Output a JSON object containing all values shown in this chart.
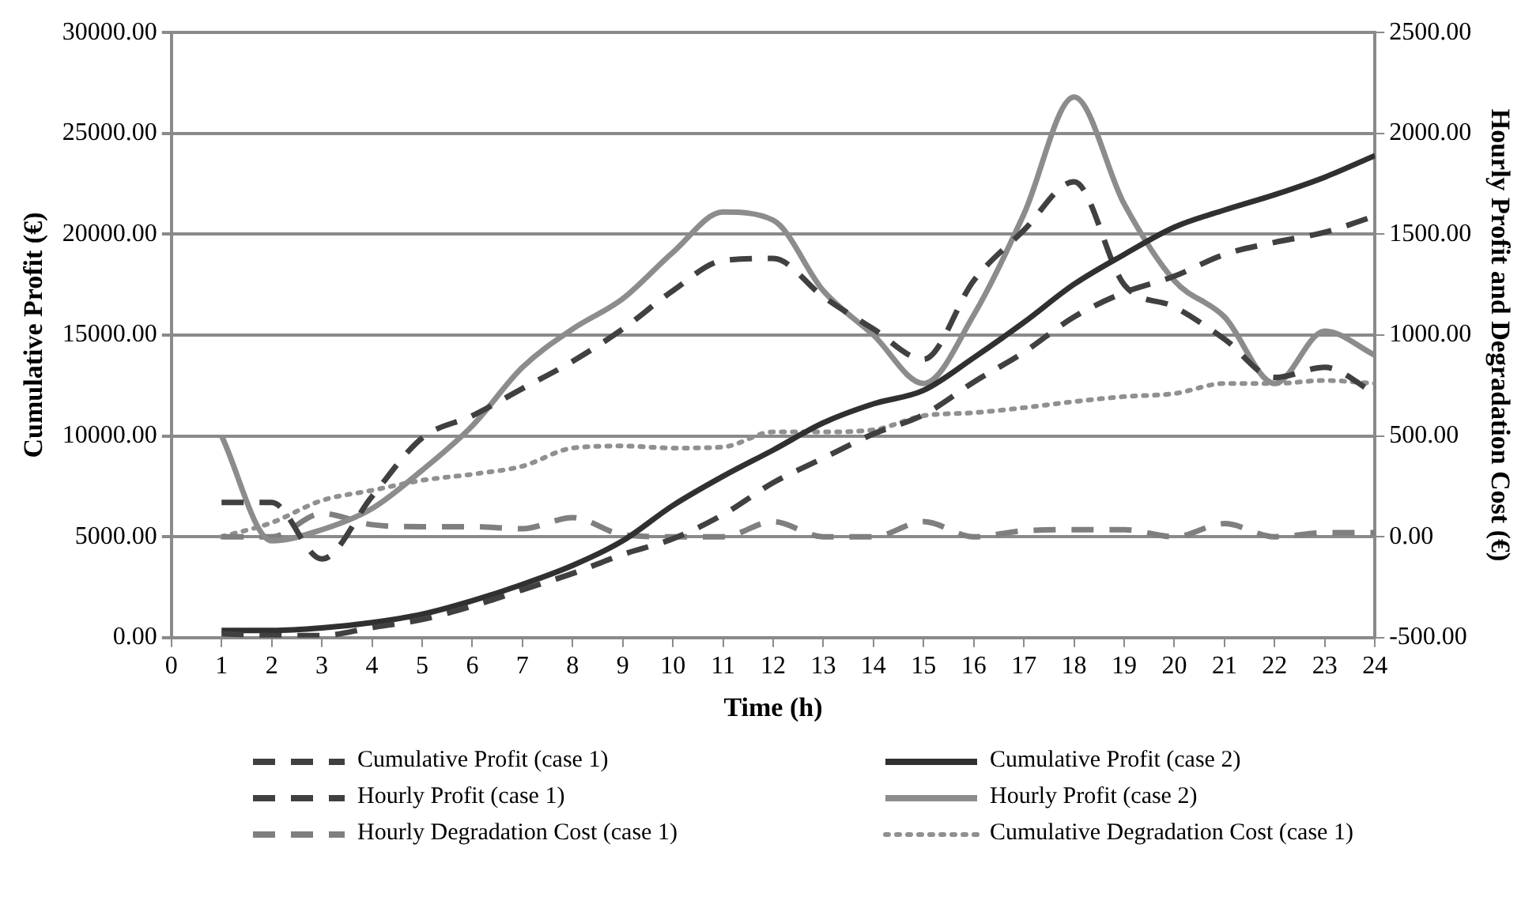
{
  "chart_data": {
    "type": "line",
    "xlabel": "Time (h)",
    "ylabel": "Cumulative Profit (€)",
    "y2label": "Hourly Profit and Degradation Cost (€)",
    "x": [
      1,
      2,
      3,
      4,
      5,
      6,
      7,
      8,
      9,
      10,
      11,
      12,
      13,
      14,
      15,
      16,
      17,
      18,
      19,
      20,
      21,
      22,
      23,
      24
    ],
    "xlim": [
      0,
      24
    ],
    "xticks": [
      0,
      1,
      2,
      3,
      4,
      5,
      6,
      7,
      8,
      9,
      10,
      11,
      12,
      13,
      14,
      15,
      16,
      17,
      18,
      19,
      20,
      21,
      22,
      23,
      24
    ],
    "ylim": [
      0,
      30000
    ],
    "yticks": [
      {
        "value": 0,
        "label": "0.00"
      },
      {
        "value": 5000,
        "label": "5000.00"
      },
      {
        "value": 10000,
        "label": "10000.00"
      },
      {
        "value": 15000,
        "label": "15000.00"
      },
      {
        "value": 20000,
        "label": "20000.00"
      },
      {
        "value": 25000,
        "label": "25000.00"
      },
      {
        "value": 30000,
        "label": "30000.00"
      }
    ],
    "y2lim": [
      -500,
      2500
    ],
    "y2ticks": [
      {
        "value": -500,
        "label": "-500.00"
      },
      {
        "value": 0,
        "label": "0.00"
      },
      {
        "value": 500,
        "label": "500.00"
      },
      {
        "value": 1000,
        "label": "1000.00"
      },
      {
        "value": 1500,
        "label": "1500.00"
      },
      {
        "value": 2000,
        "label": "2000.00"
      },
      {
        "value": 2500,
        "label": "2500.00"
      }
    ],
    "grid": "y",
    "legend": "bottom",
    "marker": "none",
    "series": [
      {
        "name": "Cumulative Profit (case 1)",
        "color": "#404040",
        "line_style": "dashed",
        "values": [
          200,
          100,
          100,
          500,
          900,
          1560,
          2370,
          3180,
          4120,
          4900,
          6100,
          7680,
          8900,
          10100,
          11050,
          12670,
          14150,
          15900,
          17110,
          17920,
          19000,
          19600,
          20100,
          20900
        ]
      },
      {
        "name": "Cumulative Profit (case 2)",
        "color": "#303030",
        "line_style": "solid",
        "values": [
          350,
          350,
          480,
          750,
          1160,
          1830,
          2640,
          3580,
          4800,
          6550,
          8000,
          9300,
          10650,
          11590,
          12260,
          13880,
          15630,
          17520,
          19000,
          20350,
          21200,
          21960,
          22830,
          23900
        ]
      },
      {
        "name": "Hourly Profit (case 1)",
        "color": "#404040",
        "line_style": "dashed",
        "axis": "y2",
        "values": [
          170,
          170,
          -110,
          200,
          490,
          600,
          735,
          870,
          1030,
          1220,
          1370,
          1380,
          1190,
          1030,
          880,
          1270,
          1520,
          1760,
          1250,
          1140,
          980,
          790,
          840,
          710
        ]
      },
      {
        "name": "Hourly Profit (case 2)",
        "color": "#8c8c8c",
        "line_style": "solid",
        "axis": "y2",
        "values": [
          500,
          -20,
          35,
          140,
          330,
          550,
          840,
          1030,
          1180,
          1410,
          1610,
          1570,
          1220,
          1000,
          760,
          1100,
          1600,
          2180,
          1650,
          1270,
          1090,
          760,
          1020,
          900
        ]
      },
      {
        "name": "Hourly Degradation Cost (case 1)",
        "color": "#7f7f7f",
        "line_style": "dashed",
        "axis": "y2",
        "values": [
          0,
          0,
          115,
          60,
          50,
          50,
          40,
          95,
          10,
          0,
          0,
          75,
          0,
          0,
          75,
          0,
          30,
          35,
          35,
          0,
          65,
          0,
          20,
          20
        ]
      },
      {
        "name": "Cumulative Degradation Cost (case 1)",
        "color": "#909090",
        "line_style": "dotted",
        "axis": "y2",
        "values": [
          0,
          70,
          180,
          230,
          280,
          310,
          350,
          440,
          450,
          440,
          445,
          520,
          520,
          530,
          600,
          615,
          640,
          670,
          695,
          710,
          760,
          760,
          775,
          760
        ]
      }
    ]
  }
}
